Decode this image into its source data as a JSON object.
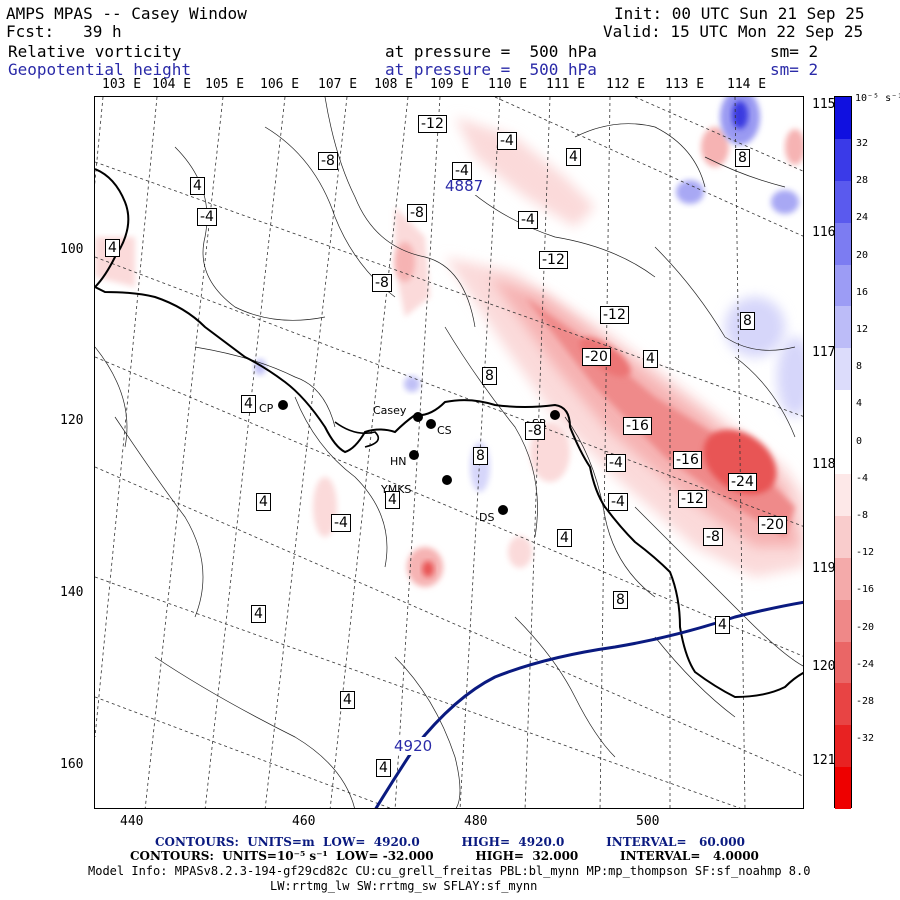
{
  "header": {
    "title": "AMPS MPAS -- Casey Window",
    "init": "Init: 00 UTC Sun 21 Sep 25",
    "fcst": "Fcst:   39 h",
    "valid": "Valid: 15 UTC Mon 22 Sep 25",
    "field1_name": "Relative vorticity",
    "field1_level": "at pressure =  500 hPa",
    "field1_sm": "sm= 2",
    "field2_name": "Geopotential height",
    "field2_level": "at pressure =  500 hPa",
    "field2_sm": "sm= 2"
  },
  "lon_labels_top": [
    "103 E",
    "104 E",
    "105 E",
    "106 E",
    "107 E",
    "108 E",
    "109 E",
    "110 E",
    "111 E",
    "112 E",
    "113 E",
    "114 E"
  ],
  "lon_labels_right": [
    "115 E",
    "116 E",
    "117 E",
    "118 E",
    "119 E",
    "120 E",
    "121 E"
  ],
  "x_ticks": [
    "440",
    "460",
    "480",
    "500"
  ],
  "y_ticks": [
    "100",
    "120",
    "140",
    "160"
  ],
  "stations": [
    "Casey",
    "CS",
    "SR",
    "HN",
    "YMKS",
    "DS",
    "CP"
  ],
  "height_labels": [
    "4887",
    "4920"
  ],
  "vort_labels": [
    "-12",
    "-4",
    "-8",
    "4",
    "-4",
    "-8",
    "4",
    "-4",
    "4",
    "-4",
    "-8",
    "-12",
    "-20",
    "-12",
    "4",
    "8",
    "4",
    "-16",
    "-16",
    "-24",
    "-4",
    "-12",
    "-20",
    "-8",
    "4",
    "-4",
    "4",
    "8",
    "-8",
    "-4",
    "4",
    "4",
    "8",
    "4",
    "4",
    "4",
    "8",
    "8"
  ],
  "colorbar": {
    "unit": "10⁻⁵ s⁻¹",
    "ticks": [
      "32",
      "28",
      "24",
      "20",
      "16",
      "12",
      "8",
      "4",
      "0",
      "-4",
      "-8",
      "-12",
      "-16",
      "-20",
      "-24",
      "-28",
      "-32"
    ]
  },
  "footer": {
    "contours1": "CONTOURS:  UNITS=m  LOW=  4920.0          HIGH=  4920.0          INTERVAL=   60.000",
    "contours2": "CONTOURS:  UNITS=10⁻⁵ s⁻¹  LOW= -32.000          HIGH=  32.000          INTERVAL=   4.0000",
    "model_info": "Model Info: MPASv8.2.3-194-gf29cd82c CU:cu_grell_freitas PBL:bl_mynn MP:mp_thompson SF:sf_noahmp 8.0",
    "model_info2": "LW:rrtmg_lw SW:rrtmg_sw SFLAY:sf_mynn"
  }
}
